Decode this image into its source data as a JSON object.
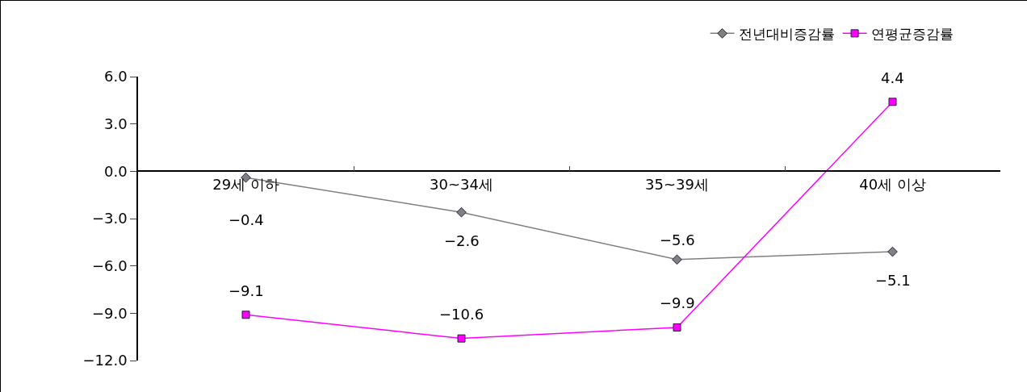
{
  "chart_data": {
    "type": "line",
    "categories": [
      "29세 이하",
      "30~34세",
      "35~39세",
      "40세 이상"
    ],
    "series": [
      {
        "name": "전년대비증감률",
        "color": "#808080",
        "marker": "diamond",
        "values": [
          -0.4,
          -2.6,
          -5.6,
          -5.1
        ],
        "value_labels": [
          "−0.4",
          "−2.6",
          "−5.6",
          "−5.1"
        ]
      },
      {
        "name": "연평균증감률",
        "color": "#ff00ff",
        "marker": "square",
        "values": [
          -9.1,
          -10.6,
          -9.9,
          4.4
        ],
        "value_labels": [
          "−9.1",
          "−10.6",
          "−9.9",
          "4.4"
        ]
      }
    ],
    "ylim": [
      -12,
      6
    ],
    "yticks": [
      {
        "value": 6,
        "label": "6.0"
      },
      {
        "value": 3,
        "label": "3.0"
      },
      {
        "value": 0,
        "label": "0.0"
      },
      {
        "value": -3,
        "label": "−3.0"
      },
      {
        "value": -6,
        "label": "−6.0"
      },
      {
        "value": -9,
        "label": "−9.0"
      },
      {
        "value": -12,
        "label": "−12.0"
      }
    ],
    "grid": false,
    "legend": "top right"
  }
}
